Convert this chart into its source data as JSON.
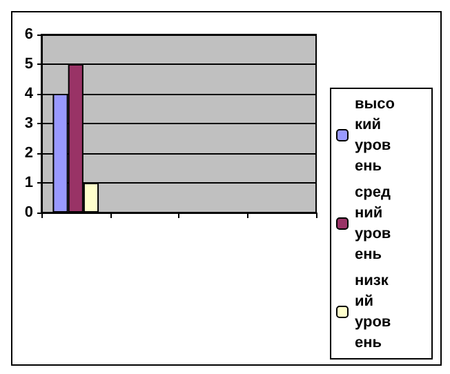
{
  "chart_data": {
    "type": "bar",
    "categories": [
      null,
      null,
      null,
      null
    ],
    "series": [
      {
        "name": "высокий уровень",
        "color": "#9999ff",
        "values": [
          4,
          null,
          null,
          null
        ]
      },
      {
        "name": "средний уровень",
        "color": "#993366",
        "values": [
          5,
          null,
          null,
          null
        ]
      },
      {
        "name": "низкий уровень",
        "color": "#ffffcc",
        "values": [
          1,
          null,
          null,
          null
        ]
      }
    ],
    "ylim": [
      0,
      6
    ],
    "yticks": [
      0,
      1,
      2,
      3,
      4,
      5,
      6
    ],
    "grid": "y",
    "legend": "bottom right"
  }
}
